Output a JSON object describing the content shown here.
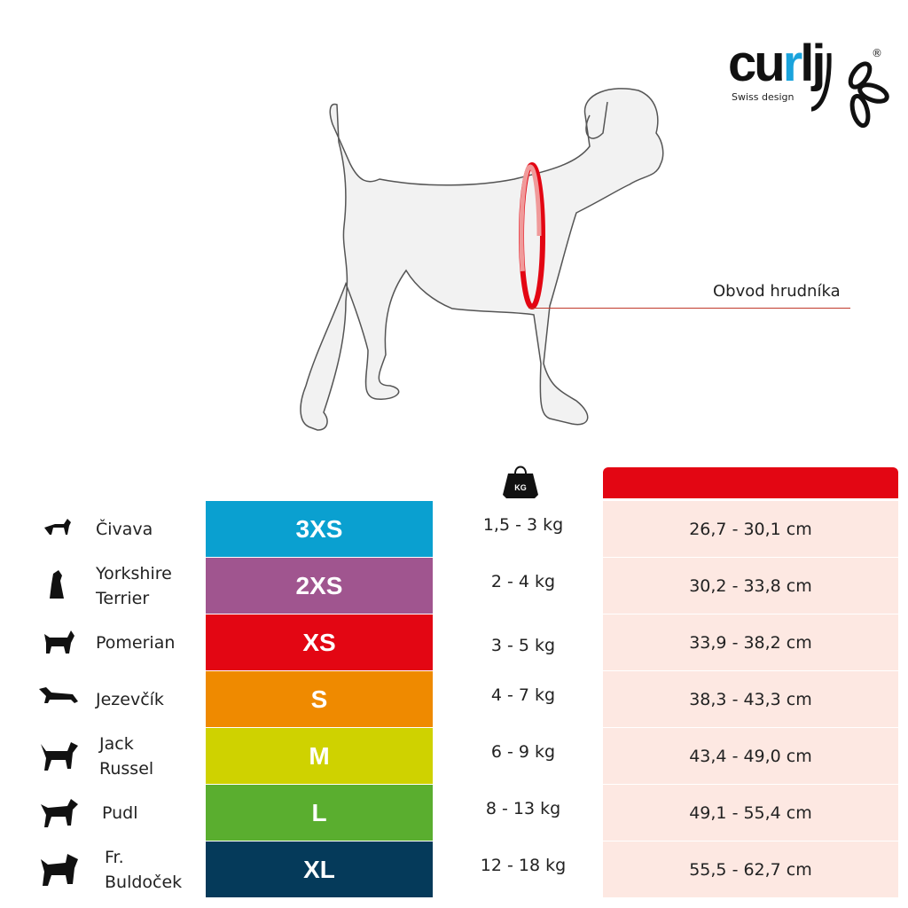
{
  "brand": {
    "logo_text": "curli",
    "tagline": "Swiss design",
    "registered": "®",
    "accent": "#1aa3dc"
  },
  "diagram": {
    "measurement_label": "Obvod hrudníka",
    "ring_color": "#e30613"
  },
  "table": {
    "weight_icon": "kg-weight-icon",
    "weight_icon_text": "KG",
    "girth_header_color": "#e30613",
    "rows": [
      {
        "breed": "Čivava",
        "size": "3XS",
        "color": "#0aa0d0",
        "weight": "1,5 - 3 kg",
        "girth": "26,7 - 30,1 cm"
      },
      {
        "breed": "Yorkshire Terrier",
        "size": "2XS",
        "color": "#a0558f",
        "weight": "2 - 4 kg",
        "girth": "30,2 - 33,8 cm"
      },
      {
        "breed": "Pomerian",
        "size": "XS",
        "color": "#e30613",
        "weight": "3 - 5 kg",
        "girth": "33,9 - 38,2 cm"
      },
      {
        "breed": "Jezevčík",
        "size": "S",
        "color": "#ef8a00",
        "weight": "4 - 7 kg",
        "girth": "38,3 - 43,3 cm"
      },
      {
        "breed": "Jack Russel",
        "size": "M",
        "color": "#cfd200",
        "weight": "6 - 9 kg",
        "girth": "43,4 - 49,0 cm"
      },
      {
        "breed": "Pudl",
        "size": "L",
        "color": "#5aae2f",
        "weight": "8 - 13 kg",
        "girth": "49,1 - 55,4 cm"
      },
      {
        "breed": "Fr. Buldoček",
        "size": "XL",
        "color": "#053a5a",
        "weight": "12 - 18 kg",
        "girth": "55,5 - 62,7 cm"
      }
    ]
  }
}
